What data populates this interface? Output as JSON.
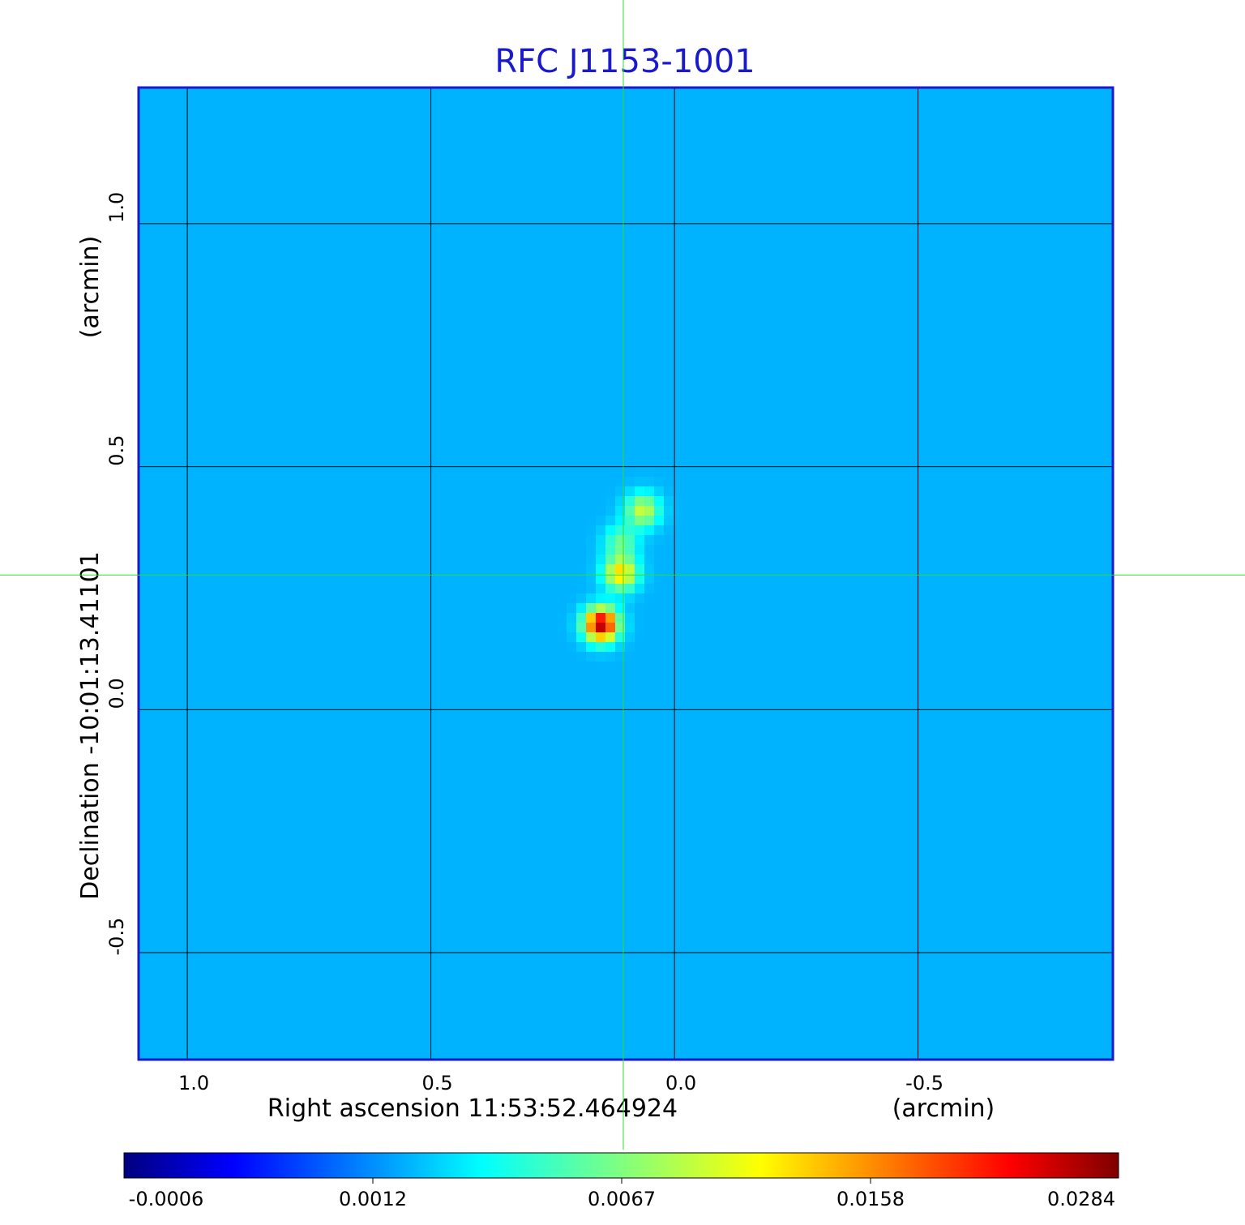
{
  "chart_data": {
    "type": "heatmap",
    "title": "RFC J1153-1001",
    "colormap": "jet",
    "grid": true,
    "x_axis": {
      "label": "Right ascension  11:53:52.464924",
      "unit_label": "(arcmin)",
      "range": [
        1.1,
        -0.9
      ],
      "ticks": [
        {
          "value": 1.0,
          "label": "1.0"
        },
        {
          "value": 0.5,
          "label": "0.5"
        },
        {
          "value": 0.0,
          "label": "0.0"
        },
        {
          "value": -0.5,
          "label": "-0.5"
        }
      ]
    },
    "y_axis": {
      "label": "Declination  -10:01:13.41101",
      "unit_label": "(arcmin)",
      "range": [
        -0.72,
        1.28
      ],
      "ticks": [
        {
          "value": 1.0,
          "label": "1.0"
        },
        {
          "value": 0.5,
          "label": "0.5"
        },
        {
          "value": 0.0,
          "label": "0.0"
        },
        {
          "value": -0.5,
          "label": "-0.5"
        }
      ]
    },
    "crosshair": {
      "x": 0.105,
      "y": 0.277,
      "color": "#33dd33"
    },
    "noise_level": -0.0002,
    "sources": [
      {
        "x": 0.15,
        "y": 0.175,
        "peak": 0.0284
      },
      {
        "x": 0.11,
        "y": 0.28,
        "peak": 0.016
      },
      {
        "x": 0.11,
        "y": 0.345,
        "peak": 0.0075
      },
      {
        "x": 0.065,
        "y": 0.41,
        "peak": 0.012
      }
    ],
    "colorbar": {
      "ticks": [
        "-0.0006",
        "0.0012",
        "0.0067",
        "0.0158",
        "0.0284"
      ]
    }
  }
}
